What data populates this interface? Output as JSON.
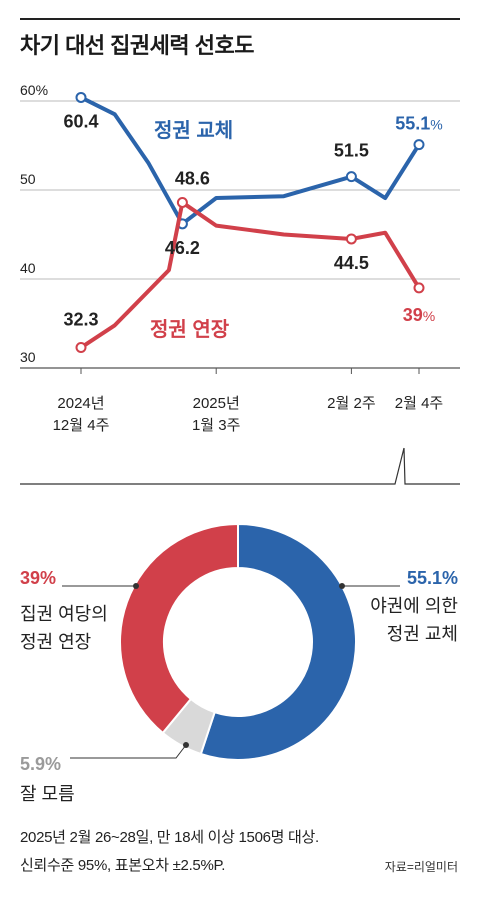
{
  "title": "차기 대선 집권세력 선호도",
  "colors": {
    "blue": "#2b64ab",
    "red": "#d1404a",
    "gray": "#d9d9d9",
    "axis": "#888888",
    "text": "#222222"
  },
  "chart_data": [
    {
      "type": "line",
      "y_ticks": [
        "60%",
        "50",
        "40",
        "30"
      ],
      "ylim": [
        30,
        60
      ],
      "x_tick_labels": [
        {
          "x": 0,
          "line1": "2024년",
          "line2": "12월 4주"
        },
        {
          "x": 4,
          "line1": "2025년",
          "line2": "1월 3주"
        },
        {
          "x": 8,
          "line1": "2월 2주",
          "line2": ""
        },
        {
          "x": 10,
          "line1": "2월 4주",
          "line2": ""
        }
      ],
      "series": [
        {
          "name": "정권 교체",
          "color": "#2b64ab",
          "values": [
            60.4,
            58.5,
            53.0,
            46.2,
            49.1,
            49.2,
            49.3,
            51.5,
            49.1,
            55.1
          ],
          "x": [
            0,
            1,
            2,
            3,
            4,
            5,
            6,
            8,
            9,
            10
          ],
          "labels": [
            {
              "index": 0,
              "text": "60.4"
            },
            {
              "index": 3,
              "text": "46.2"
            },
            {
              "index": 7,
              "text": "51.5"
            },
            {
              "index": 9,
              "text": "55.1",
              "unit": "%"
            }
          ]
        },
        {
          "name": "정권 연장",
          "color": "#d1404a",
          "values": [
            32.3,
            34.8,
            41.0,
            48.6,
            46.0,
            45.5,
            45.0,
            44.5,
            45.2,
            39.0
          ],
          "x": [
            0,
            1,
            2.6,
            3,
            4,
            5,
            6,
            8,
            9,
            10
          ],
          "labels": [
            {
              "index": 0,
              "text": "32.3"
            },
            {
              "index": 3,
              "text": "48.6"
            },
            {
              "index": 7,
              "text": "44.5"
            },
            {
              "index": 9,
              "text": "39",
              "unit": "%"
            }
          ]
        }
      ]
    },
    {
      "type": "pie",
      "slices": [
        {
          "label_line1": "야권에 의한",
          "label_line2": "정권 교체",
          "value": 55.1,
          "value_text": "55.1%",
          "color": "#2b64ab"
        },
        {
          "label_line1": "잘 모름",
          "label_line2": "",
          "value": 5.9,
          "value_text": "5.9%",
          "color": "#d9d9d9"
        },
        {
          "label_line1": "집권 여당의",
          "label_line2": "정권 연장",
          "value": 39,
          "value_text": "39%",
          "color": "#d1404a"
        }
      ]
    }
  ],
  "footer": {
    "line1": "2025년 2월 26~28일, 만 18세 이상 1506명 대상.",
    "line2": "신뢰수준 95%, 표본오차 ±2.5%P.",
    "source": "자료=리얼미터"
  }
}
